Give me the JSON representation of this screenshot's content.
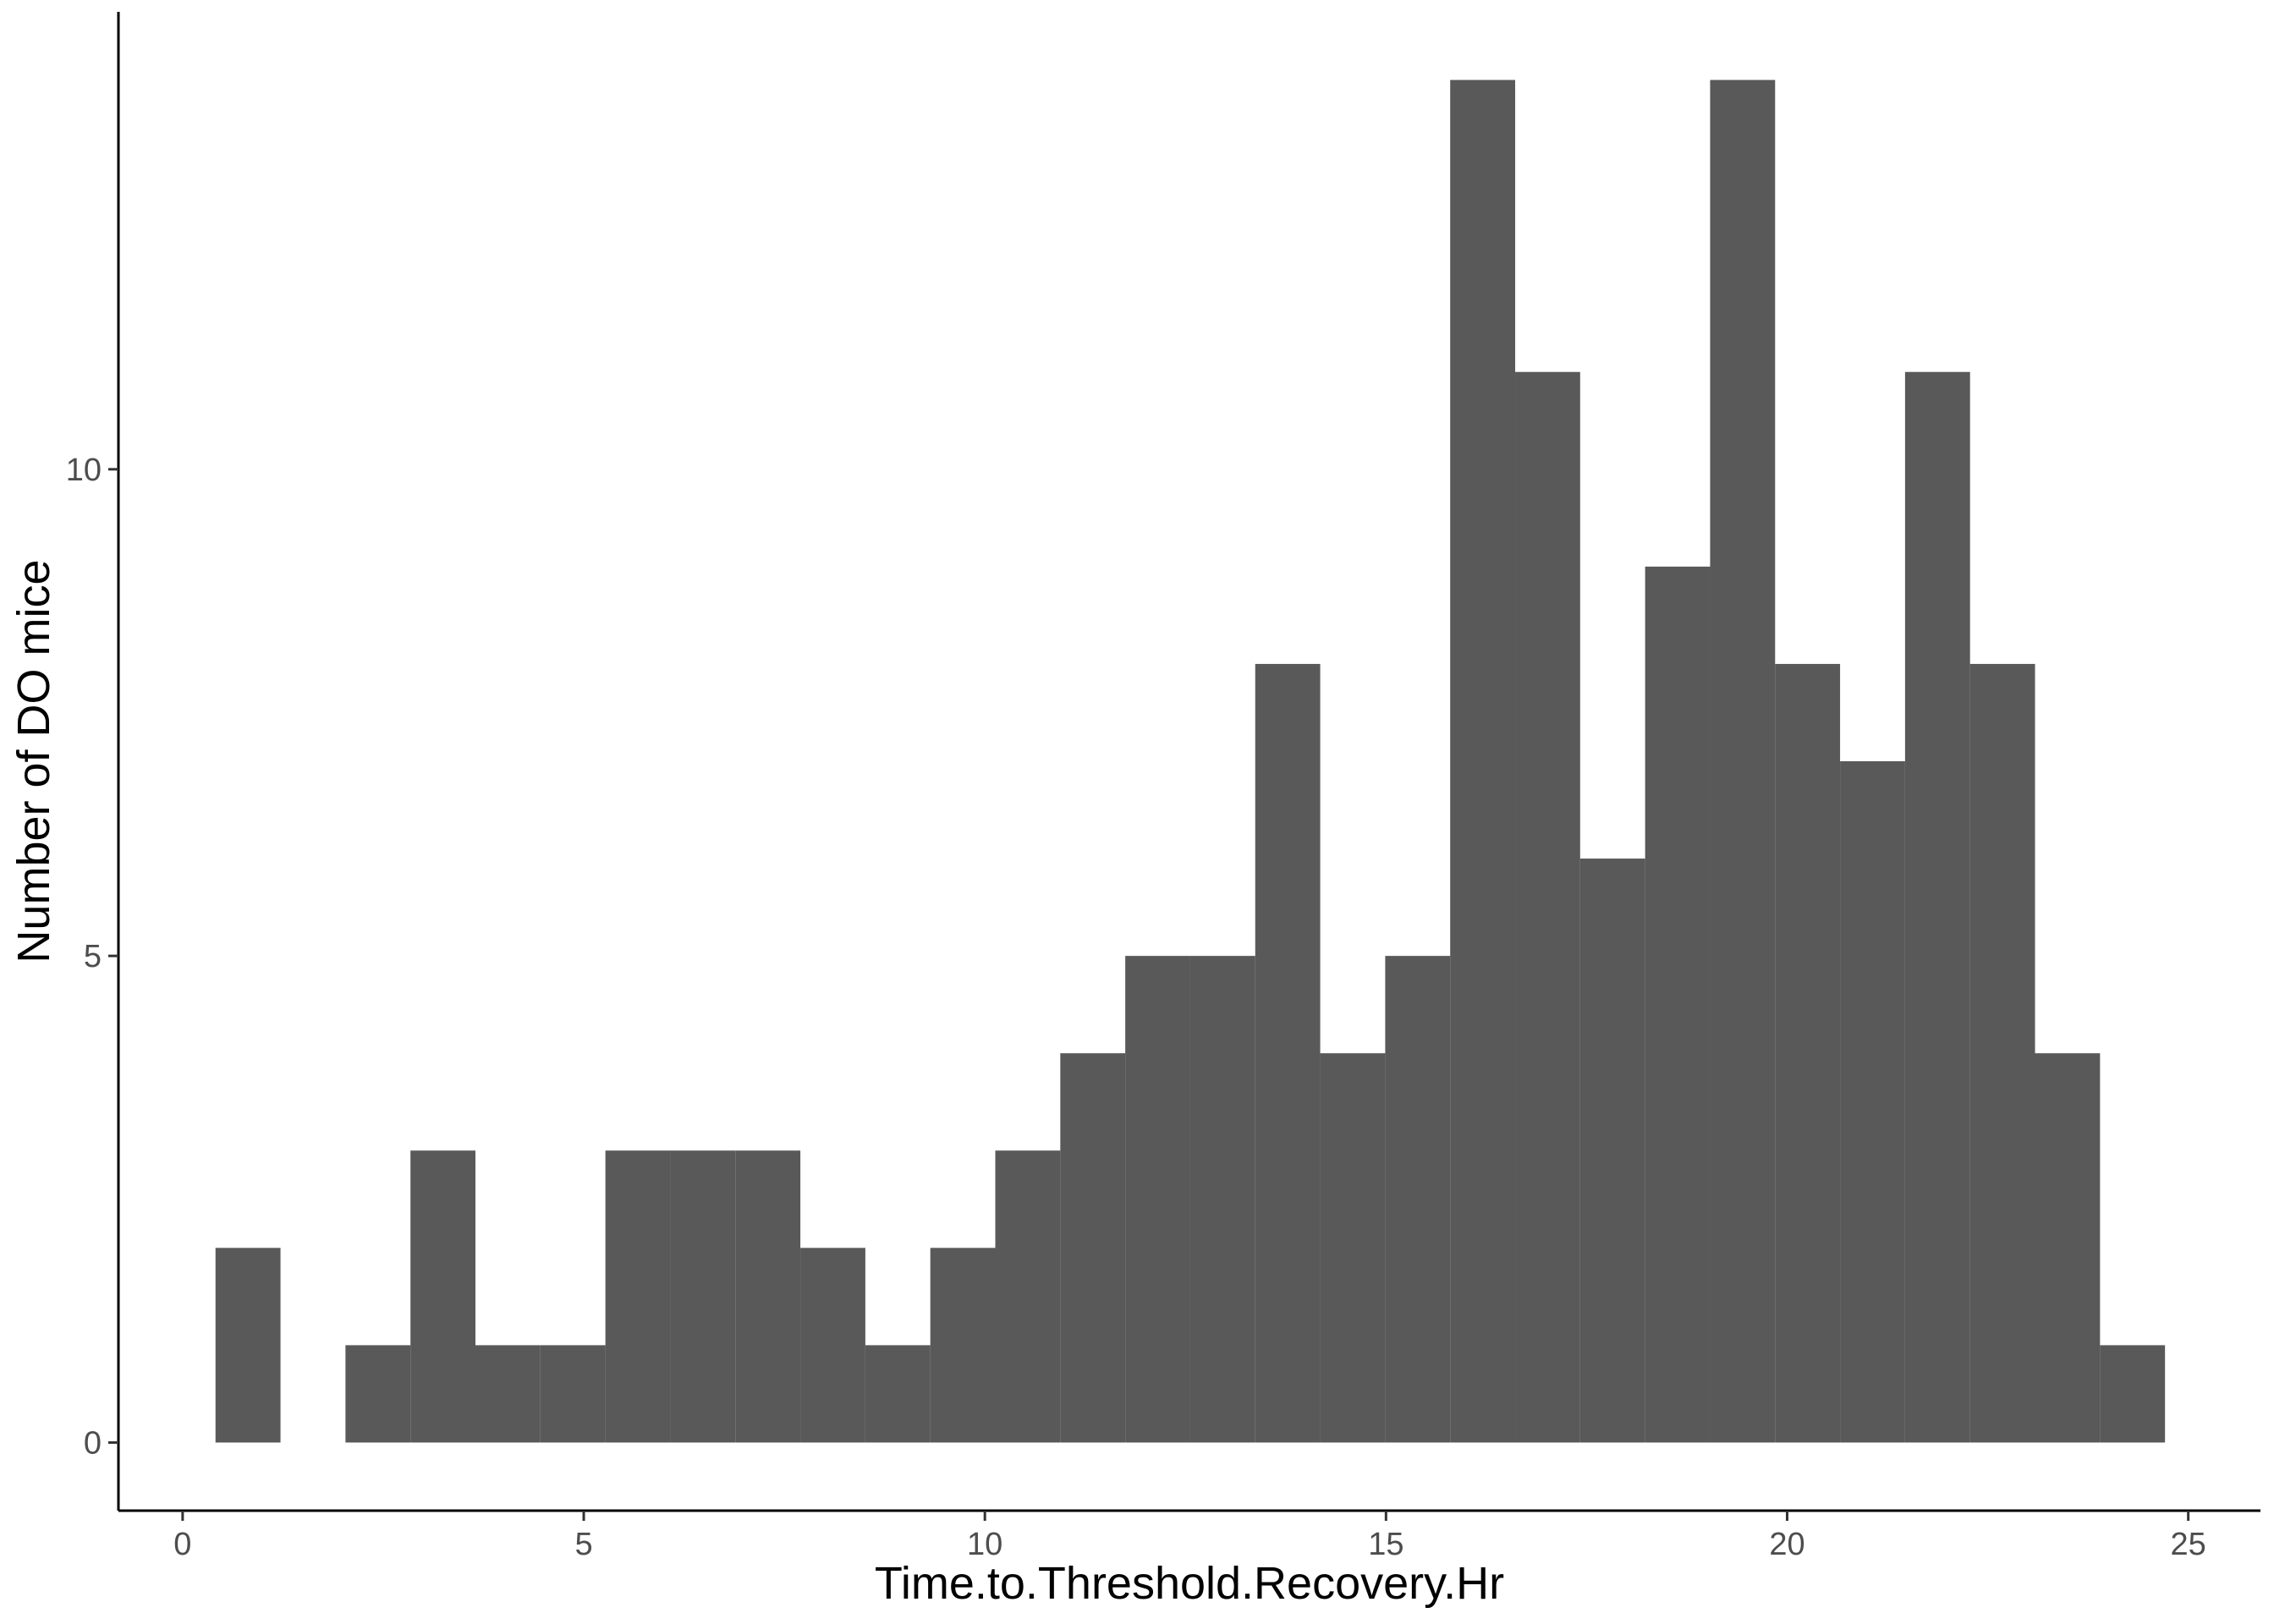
{
  "chart_data": {
    "type": "bar",
    "subtype": "histogram",
    "title": "",
    "xlabel": "Time.to.Threshold.Recovery.Hr",
    "ylabel": "Number of DO mice",
    "xlim": [
      -0.8,
      25.9
    ],
    "ylim": [
      -0.7,
      14.7
    ],
    "x_ticks": [
      0,
      5,
      10,
      15,
      20,
      25
    ],
    "y_ticks": [
      0,
      5,
      10
    ],
    "bin_width": 0.81,
    "bin_starts": [
      0.41,
      1.22,
      2.03,
      2.84,
      3.65,
      4.46,
      5.27,
      6.08,
      6.89,
      7.7,
      8.51,
      9.32,
      10.13,
      10.94,
      11.75,
      12.56,
      13.37,
      14.18,
      14.99,
      15.8,
      16.61,
      17.42,
      18.23,
      19.04,
      19.85,
      20.66,
      21.47,
      22.28,
      23.09,
      23.9
    ],
    "values": [
      2,
      0,
      1,
      3,
      1,
      1,
      3,
      3,
      3,
      2,
      1,
      2,
      3,
      4,
      5,
      5,
      8,
      4,
      5,
      14,
      11,
      6,
      9,
      14,
      8,
      7,
      11,
      8,
      4,
      1
    ],
    "grid": false,
    "legend": "none",
    "colors": {
      "bar": "#595959",
      "axis": "#000000",
      "tick_label": "#4d4d4d",
      "background": "#ffffff"
    }
  }
}
